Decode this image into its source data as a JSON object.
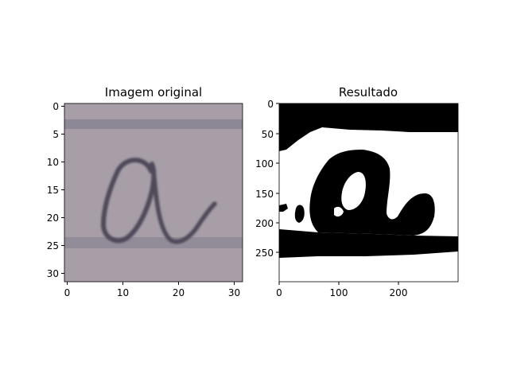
{
  "chart_data": [
    {
      "type": "heatmap",
      "title": "Imagem original",
      "xlabel": "",
      "ylabel": "",
      "xlim": [
        -0.5,
        31.5
      ],
      "ylim": [
        31.5,
        -0.5
      ],
      "xticks": [
        0,
        10,
        20,
        30
      ],
      "yticks": [
        0,
        5,
        10,
        15,
        20,
        25,
        30
      ],
      "content": "handwritten letter a on lined paper",
      "colors": {
        "paper": "#a79ea8",
        "ruled_line": "#8d8896",
        "ink": "#4f4a5a"
      }
    },
    {
      "type": "heatmap",
      "title": "Resultado",
      "xlabel": "",
      "ylabel": "",
      "xlim": [
        0,
        299
      ],
      "ylim": [
        299,
        0
      ],
      "xticks": [
        0,
        100,
        200
      ],
      "yticks": [
        0,
        50,
        100,
        150,
        200,
        250
      ],
      "content": "binary mask of the letter a",
      "colors": {
        "foreground": "#000000",
        "background": "#ffffff"
      }
    }
  ]
}
